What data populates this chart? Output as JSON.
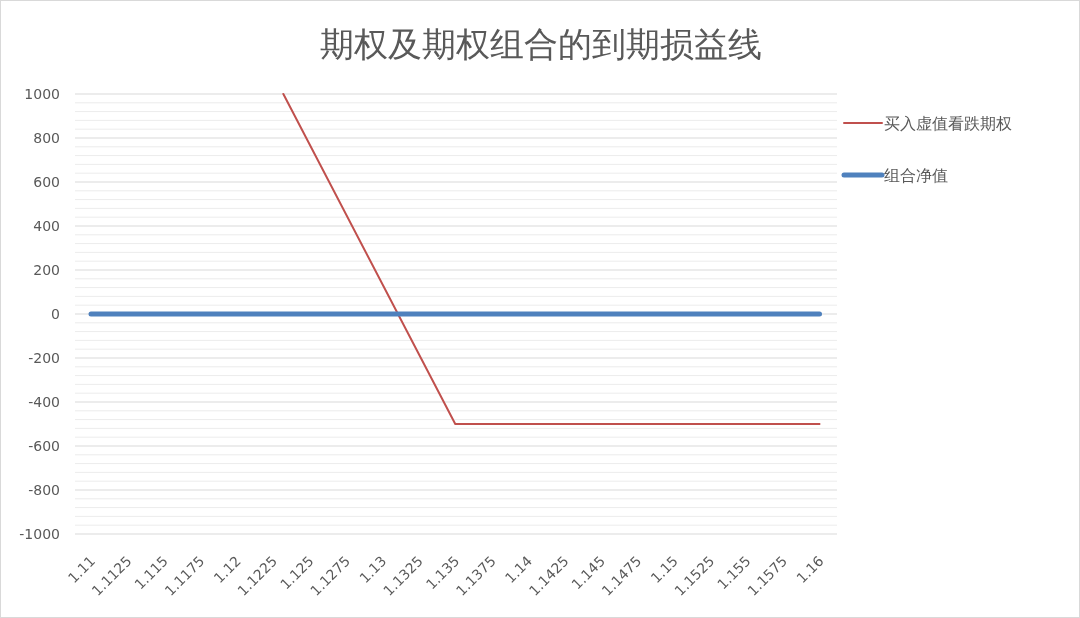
{
  "chart_data": {
    "type": "line",
    "title": "期权及期权组合的到期损益线",
    "series": [
      {
        "name": "买入虚值看跌期权",
        "color": "#c0504d",
        "x": [
          1.1232,
          1.135,
          1.16
        ],
        "values": [
          1000,
          -500,
          -500
        ]
      },
      {
        "name": "组合净值",
        "color": "#4f81bd",
        "x": [
          1.11,
          1.16
        ],
        "values": [
          0,
          0
        ]
      }
    ],
    "xlim": [
      1.1089,
      1.1612
    ],
    "xticks": [
      1.11,
      1.1125,
      1.115,
      1.1175,
      1.12,
      1.1225,
      1.125,
      1.1275,
      1.13,
      1.1325,
      1.135,
      1.1375,
      1.14,
      1.1425,
      1.145,
      1.1475,
      1.15,
      1.1525,
      1.155,
      1.1575,
      1.16
    ],
    "ylim": [
      -1000,
      1000
    ],
    "yticks": [
      -1000,
      {
        "value": -960,
        "label": null
      },
      {
        "value": -920,
        "label": null
      },
      {
        "value": -880,
        "label": null
      },
      {
        "value": -840,
        "label": null
      },
      -800,
      {
        "value": -760,
        "label": null
      },
      {
        "value": -720,
        "label": null
      },
      {
        "value": -680,
        "label": null
      },
      {
        "value": -640,
        "label": null
      },
      -600,
      {
        "value": -560,
        "label": null
      },
      {
        "value": -520,
        "label": null
      },
      {
        "value": -480,
        "label": null
      },
      {
        "value": -440,
        "label": null
      },
      -400,
      {
        "value": -360,
        "label": null
      },
      {
        "value": -320,
        "label": null
      },
      {
        "value": -280,
        "label": null
      },
      {
        "value": -240,
        "label": null
      },
      -200,
      {
        "value": -160,
        "label": null
      },
      {
        "value": -120,
        "label": null
      },
      {
        "value": -80,
        "label": null
      },
      {
        "value": -40,
        "label": null
      },
      0,
      {
        "value": 40,
        "label": null
      },
      {
        "value": 80,
        "label": null
      },
      {
        "value": 120,
        "label": null
      },
      {
        "value": 160,
        "label": null
      },
      200,
      {
        "value": 240,
        "label": null
      },
      {
        "value": 280,
        "label": null
      },
      {
        "value": 320,
        "label": null
      },
      {
        "value": 360,
        "label": null
      },
      400,
      {
        "value": 440,
        "label": null
      },
      {
        "value": 480,
        "label": null
      },
      {
        "value": 520,
        "label": null
      },
      {
        "value": 560,
        "label": null
      },
      600,
      {
        "value": 640,
        "label": null
      },
      {
        "value": 680,
        "label": null
      },
      {
        "value": 720,
        "label": null
      },
      {
        "value": 760,
        "label": null
      },
      800,
      {
        "value": 840,
        "label": null
      },
      {
        "value": 880,
        "label": null
      },
      {
        "value": 920,
        "label": null
      },
      {
        "value": 960,
        "label": null
      },
      1000
    ],
    "grid": "y",
    "legend": "right",
    "marker": "none"
  }
}
